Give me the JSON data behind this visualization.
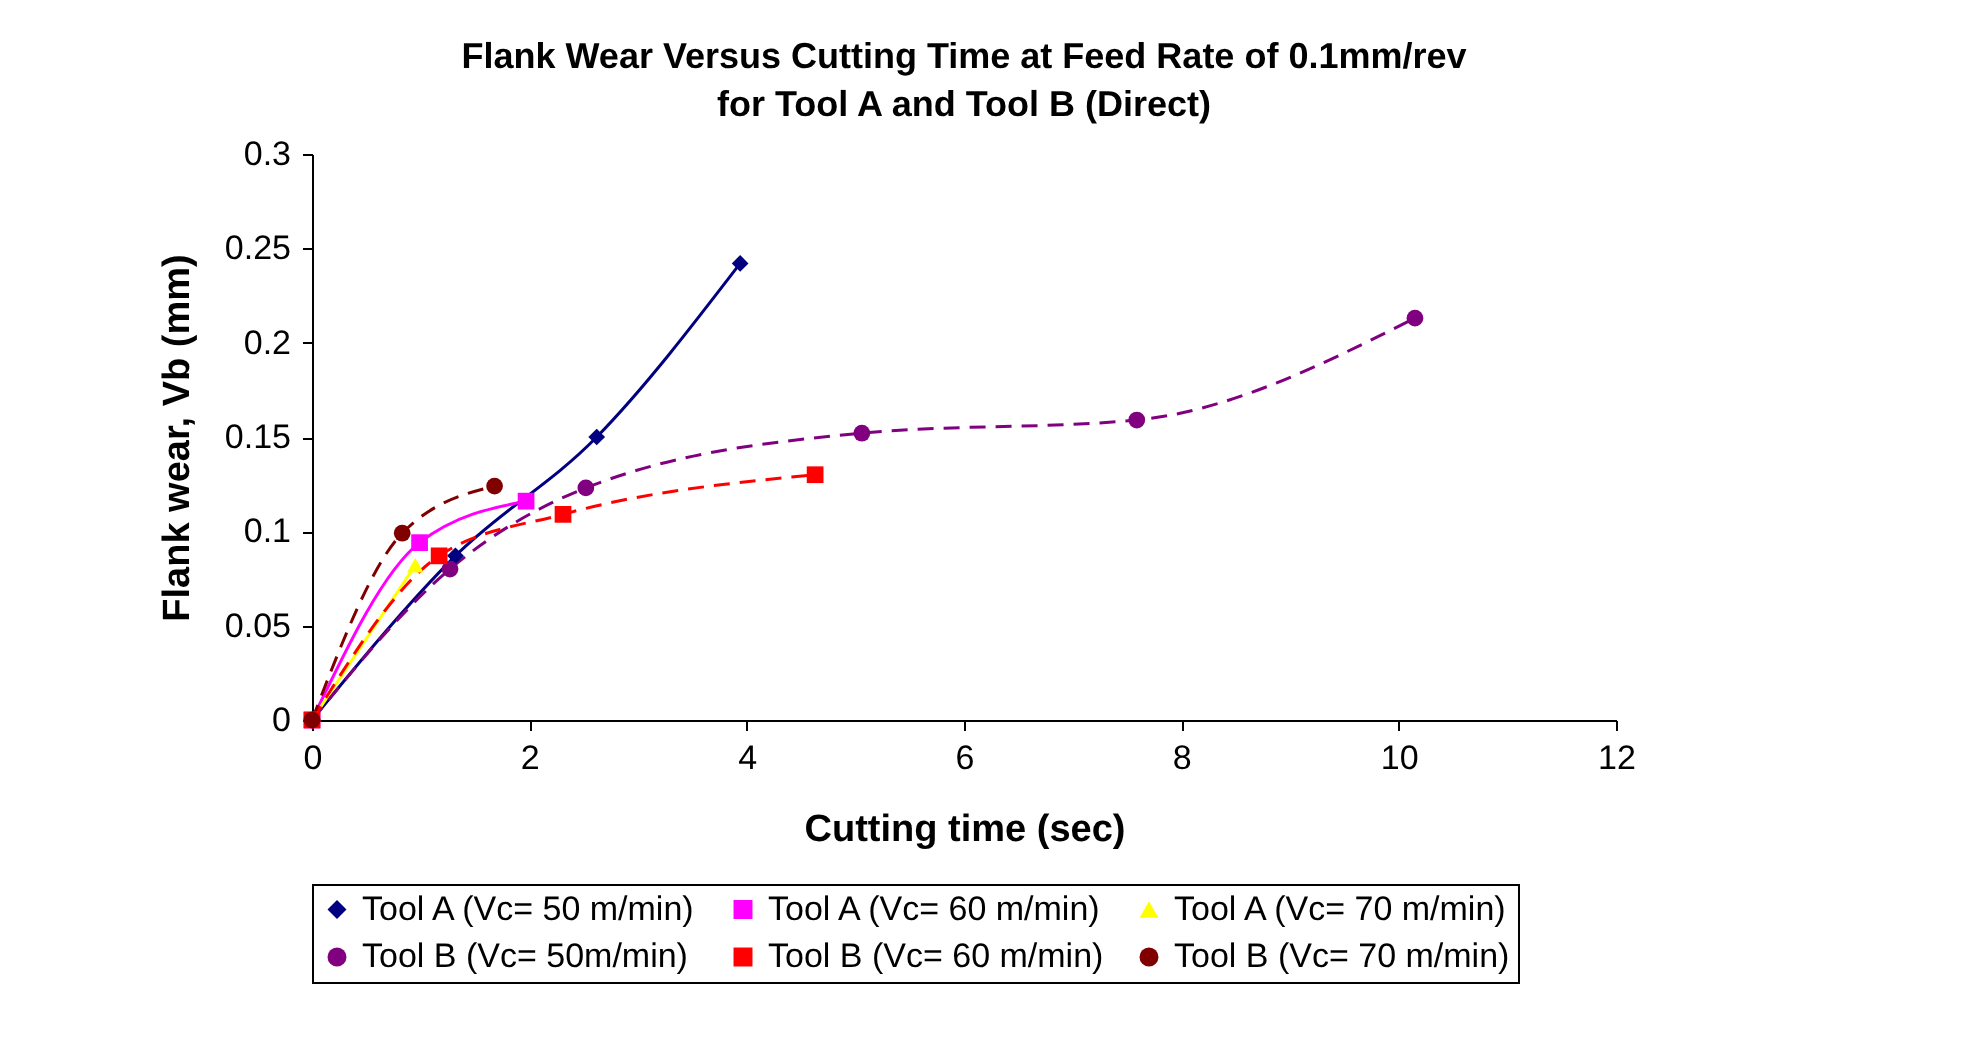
{
  "chart_data": {
    "type": "line",
    "title": "Flank Wear Versus Cutting Time at Feed Rate of 0.1mm/rev for Tool A and Tool B (Direct)",
    "xlabel": "Cutting time (sec)",
    "ylabel": "Flank wear, Vb (mm)",
    "xlim": [
      0,
      12
    ],
    "xticks": [
      0,
      2,
      4,
      6,
      8,
      10,
      12
    ],
    "ylim": [
      0,
      0.3
    ],
    "yticks": [
      0,
      0.05,
      0.1,
      0.15,
      0.2,
      0.25,
      0.3
    ],
    "grid": false,
    "legend": "bottom",
    "series": [
      {
        "name": "Tool A (Vc= 50 m/min)",
        "color": "#000080",
        "marker": "diamond",
        "line_style": "solid",
        "x": [
          0,
          1.32,
          2.62,
          3.94
        ],
        "values": [
          0,
          0.087,
          0.15,
          0.242
        ]
      },
      {
        "name": "Tool A (Vc= 60 m/min)",
        "color": "#ff00ff",
        "marker": "square",
        "line_style": "solid",
        "x": [
          0,
          0.99,
          1.97
        ],
        "values": [
          0,
          0.094,
          0.116
        ]
      },
      {
        "name": "Tool A (Vc= 70 m/min)",
        "color": "#ffff00",
        "marker": "triangle",
        "line_style": "solid",
        "x": [
          0,
          0.95
        ],
        "values": [
          0,
          0.082
        ]
      },
      {
        "name": "Tool B (Vc= 50m/min)",
        "color": "#800080",
        "marker": "circle",
        "line_style": "dashed",
        "x": [
          0,
          1.27,
          2.52,
          5.06,
          7.59,
          10.15
        ],
        "values": [
          0,
          0.08,
          0.123,
          0.152,
          0.159,
          0.213
        ]
      },
      {
        "name": "Tool B (Vc= 60 m/min)",
        "color": "#ff0000",
        "marker": "square",
        "line_style": "dashed",
        "x": [
          0,
          1.17,
          2.31,
          4.63
        ],
        "values": [
          0,
          0.087,
          0.109,
          0.13
        ]
      },
      {
        "name": "Tool B (Vc= 70 m/min)",
        "color": "#800000",
        "marker": "circle",
        "line_style": "dashed",
        "x": [
          0,
          0.83,
          1.68
        ],
        "values": [
          0,
          0.099,
          0.124
        ]
      }
    ]
  }
}
